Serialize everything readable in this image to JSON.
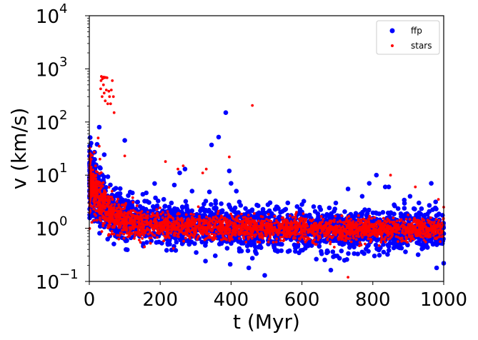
{
  "chart_data": {
    "type": "scatter",
    "title": "",
    "xlabel": "t (Myr)",
    "ylabel": "v (km/s)",
    "xscale": "linear",
    "yscale": "log",
    "xlim": [
      0,
      1000
    ],
    "ylim": [
      0.1,
      10000
    ],
    "x_ticks": [
      0,
      200,
      400,
      600,
      800,
      1000
    ],
    "x_tick_labels": [
      "0",
      "200",
      "400",
      "600",
      "800",
      "1000"
    ],
    "y_ticks": [
      {
        "value": 0.1,
        "base": "10",
        "exp": "−1"
      },
      {
        "value": 1,
        "base": "10",
        "exp": "0"
      },
      {
        "value": 10,
        "base": "10",
        "exp": "1"
      },
      {
        "value": 100,
        "base": "10",
        "exp": "2"
      },
      {
        "value": 1000,
        "base": "10",
        "exp": "3"
      },
      {
        "value": 10000,
        "base": "10",
        "exp": "4"
      }
    ],
    "legend": {
      "position": "top-right",
      "entries": [
        "ffp",
        "stars"
      ]
    },
    "series": [
      {
        "name": "ffp",
        "color": "#0000ff",
        "marker": "large-dot",
        "band": [
          [
            0,
            9,
            0.7
          ],
          [
            20,
            4.5,
            0.55
          ],
          [
            50,
            2.4,
            0.5
          ],
          [
            100,
            1.5,
            0.45
          ],
          [
            200,
            1.15,
            0.42
          ],
          [
            400,
            1.0,
            0.4
          ],
          [
            700,
            0.95,
            0.38
          ],
          [
            1000,
            0.95,
            0.38
          ]
        ],
        "outliers": [
          [
            5,
            40
          ],
          [
            15,
            27
          ],
          [
            22,
            38
          ],
          [
            28,
            80
          ],
          [
            100,
            45
          ],
          [
            210,
            3.5
          ],
          [
            240,
            6.5
          ],
          [
            255,
            11
          ],
          [
            270,
            13
          ],
          [
            290,
            5
          ],
          [
            345,
            37
          ],
          [
            365,
            52
          ],
          [
            385,
            150
          ],
          [
            395,
            12
          ],
          [
            400,
            7
          ],
          [
            415,
            5
          ],
          [
            450,
            0.18
          ],
          [
            495,
            0.13
          ],
          [
            560,
            3
          ],
          [
            600,
            2.8
          ],
          [
            650,
            2.5
          ],
          [
            720,
            0.25
          ],
          [
            730,
            5.5
          ],
          [
            770,
            4
          ],
          [
            790,
            7
          ],
          [
            810,
            10
          ],
          [
            835,
            6
          ],
          [
            845,
            6
          ],
          [
            905,
            4
          ],
          [
            930,
            3
          ],
          [
            965,
            7
          ],
          [
            980,
            0.18
          ],
          [
            1000,
            0.22
          ]
        ]
      },
      {
        "name": "stars",
        "color": "#ff0000",
        "marker": "small-dot",
        "band": [
          [
            0,
            8,
            0.6
          ],
          [
            20,
            4,
            0.45
          ],
          [
            50,
            2,
            0.35
          ],
          [
            100,
            1.3,
            0.3
          ],
          [
            200,
            1.1,
            0.25
          ],
          [
            400,
            1.0,
            0.22
          ],
          [
            700,
            0.95,
            0.2
          ],
          [
            1000,
            0.95,
            0.2
          ]
        ],
        "outliers": [
          [
            25,
            50
          ],
          [
            28,
            35
          ],
          [
            30,
            20
          ],
          [
            32,
            420
          ],
          [
            33,
            600
          ],
          [
            34,
            720
          ],
          [
            36,
            300
          ],
          [
            37,
            650
          ],
          [
            38,
            680
          ],
          [
            40,
            500
          ],
          [
            41,
            700
          ],
          [
            42,
            350
          ],
          [
            43,
            680
          ],
          [
            45,
            250
          ],
          [
            46,
            690
          ],
          [
            48,
            400
          ],
          [
            50,
            680
          ],
          [
            52,
            220
          ],
          [
            55,
            380
          ],
          [
            57,
            300
          ],
          [
            60,
            220
          ],
          [
            62,
            400
          ],
          [
            65,
            600
          ],
          [
            68,
            300
          ],
          [
            70,
            150
          ],
          [
            100,
            23
          ],
          [
            215,
            18
          ],
          [
            250,
            13
          ],
          [
            265,
            15
          ],
          [
            320,
            11
          ],
          [
            330,
            13
          ],
          [
            395,
            22
          ],
          [
            460,
            205
          ],
          [
            730,
            0.12
          ],
          [
            850,
            10
          ],
          [
            920,
            6
          ],
          [
            940,
            1.5
          ],
          [
            985,
            3.5
          ],
          [
            1000,
            2.5
          ]
        ]
      }
    ]
  }
}
